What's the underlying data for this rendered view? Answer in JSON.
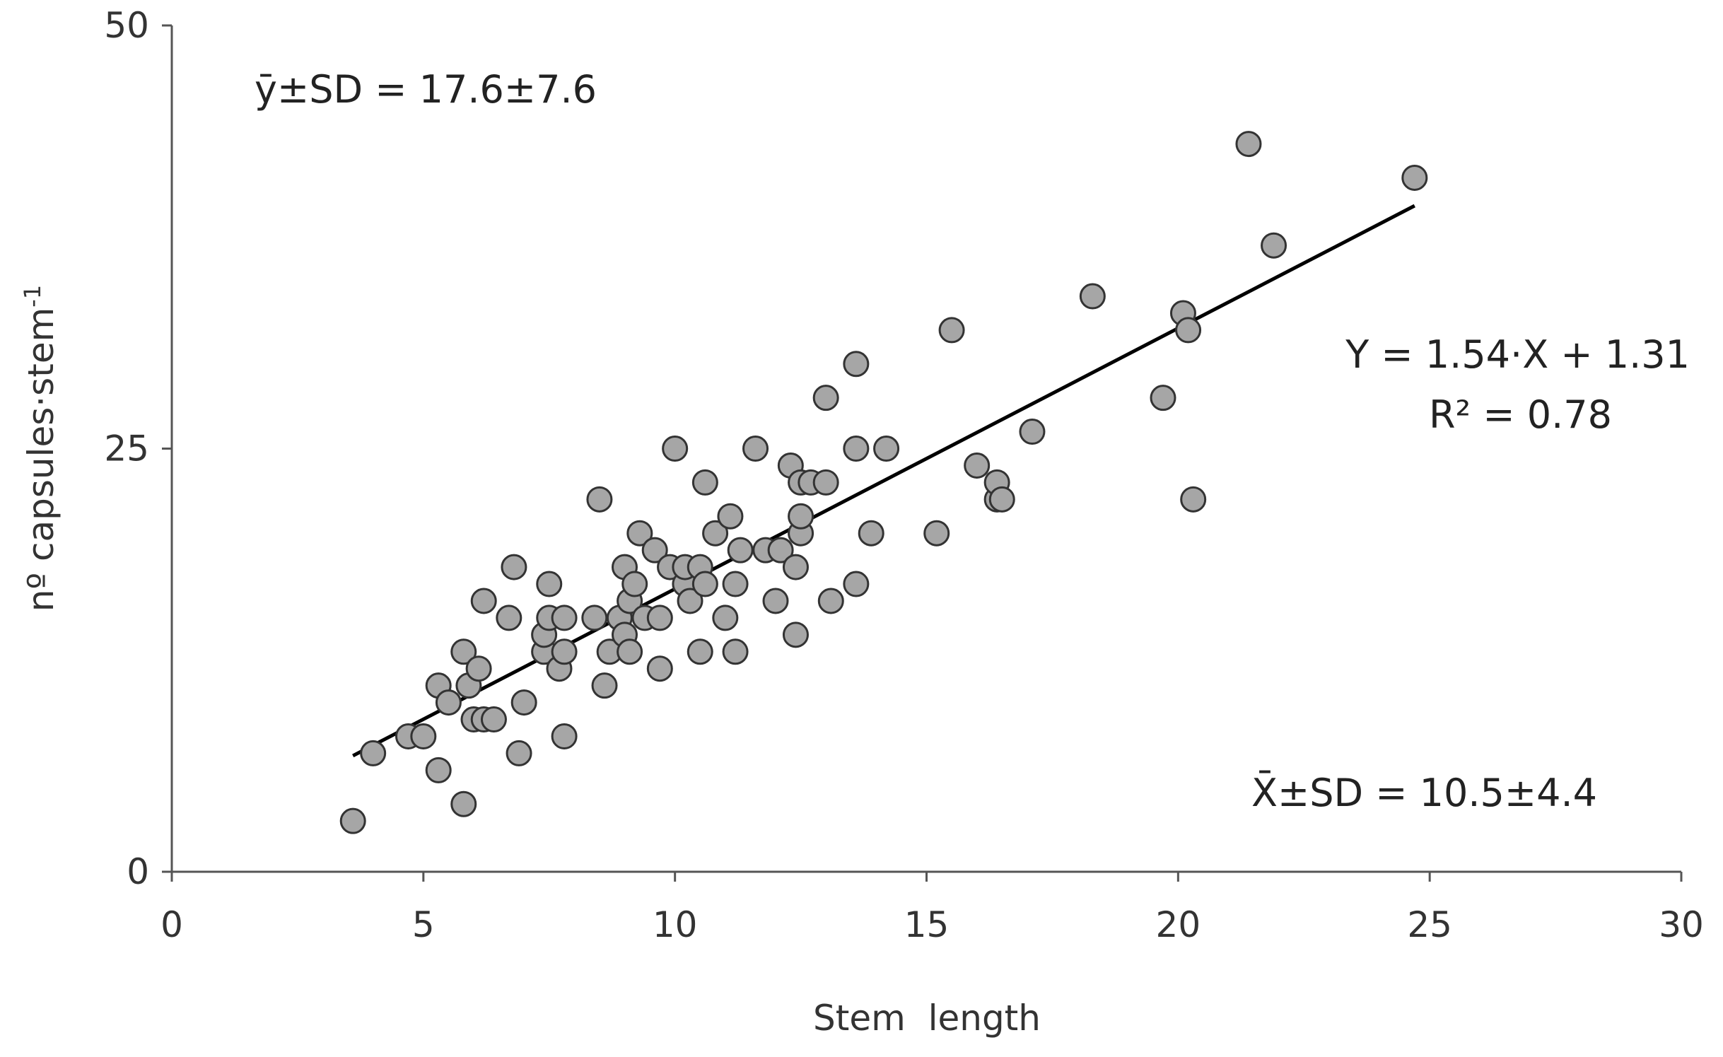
{
  "chart_data": {
    "type": "scatter",
    "title": "",
    "xlabel": "Stem  length",
    "ylabel": "nº capsules·stem-1",
    "ylabel_main": "nº capsules·stem",
    "ylabel_sup": "-1",
    "xlim": [
      0,
      30
    ],
    "ylim": [
      0,
      50
    ],
    "xticks": [
      0,
      5,
      10,
      15,
      20,
      25,
      30
    ],
    "yticks": [
      0,
      25,
      50
    ],
    "grid": false,
    "legend": "none",
    "colors": {
      "point_fill": "#a6a6a6",
      "point_stroke": "#333333",
      "line": "#000000",
      "axis": "#555555",
      "text": "#333333"
    },
    "annotations": {
      "ymean": "ȳ±SD = 17.6±7.6",
      "xmean": "X̄±SD = 10.5±4.4",
      "equation": "Y = 1.54·X + 1.31",
      "r2": "R² = 0.78"
    },
    "regression": {
      "slope": 1.54,
      "intercept": 1.31,
      "x_range": [
        3.6,
        24.7
      ]
    },
    "points": [
      [
        3.6,
        3
      ],
      [
        4.0,
        7
      ],
      [
        4.7,
        8
      ],
      [
        5.0,
        8
      ],
      [
        5.3,
        6
      ],
      [
        5.3,
        11
      ],
      [
        5.5,
        10
      ],
      [
        5.8,
        4
      ],
      [
        5.8,
        13
      ],
      [
        5.9,
        11
      ],
      [
        6.0,
        9
      ],
      [
        6.1,
        12
      ],
      [
        6.2,
        9
      ],
      [
        6.2,
        16
      ],
      [
        6.4,
        9
      ],
      [
        6.7,
        15
      ],
      [
        6.8,
        18
      ],
      [
        6.9,
        7
      ],
      [
        7.0,
        10
      ],
      [
        7.4,
        13
      ],
      [
        7.4,
        14
      ],
      [
        7.5,
        15
      ],
      [
        7.5,
        17
      ],
      [
        7.7,
        12
      ],
      [
        7.8,
        8
      ],
      [
        7.8,
        13
      ],
      [
        7.8,
        15
      ],
      [
        8.4,
        15
      ],
      [
        8.5,
        22
      ],
      [
        8.6,
        11
      ],
      [
        8.7,
        13
      ],
      [
        8.9,
        15
      ],
      [
        9.0,
        14
      ],
      [
        9.0,
        18
      ],
      [
        9.1,
        13
      ],
      [
        9.1,
        16
      ],
      [
        9.2,
        17
      ],
      [
        9.3,
        20
      ],
      [
        9.4,
        15
      ],
      [
        9.6,
        19
      ],
      [
        9.7,
        12
      ],
      [
        9.7,
        15
      ],
      [
        9.9,
        18
      ],
      [
        10.0,
        25
      ],
      [
        10.2,
        17
      ],
      [
        10.2,
        18
      ],
      [
        10.3,
        16
      ],
      [
        10.5,
        13
      ],
      [
        10.5,
        18
      ],
      [
        10.6,
        17
      ],
      [
        10.6,
        23
      ],
      [
        10.8,
        20
      ],
      [
        11.0,
        15
      ],
      [
        11.1,
        21
      ],
      [
        11.2,
        13
      ],
      [
        11.2,
        17
      ],
      [
        11.3,
        19
      ],
      [
        11.6,
        25
      ],
      [
        11.8,
        19
      ],
      [
        12.0,
        16
      ],
      [
        12.1,
        19
      ],
      [
        12.3,
        24
      ],
      [
        12.4,
        14
      ],
      [
        12.4,
        18
      ],
      [
        12.5,
        20
      ],
      [
        12.5,
        21
      ],
      [
        12.5,
        23
      ],
      [
        12.7,
        23
      ],
      [
        13.0,
        23
      ],
      [
        13.0,
        28
      ],
      [
        13.1,
        16
      ],
      [
        13.6,
        17
      ],
      [
        13.6,
        25
      ],
      [
        13.6,
        30
      ],
      [
        13.9,
        20
      ],
      [
        14.2,
        25
      ],
      [
        15.2,
        20
      ],
      [
        15.5,
        32
      ],
      [
        16.0,
        24
      ],
      [
        16.4,
        22
      ],
      [
        16.4,
        23
      ],
      [
        16.5,
        22
      ],
      [
        17.1,
        26
      ],
      [
        18.3,
        34
      ],
      [
        19.7,
        28
      ],
      [
        20.1,
        33
      ],
      [
        20.2,
        32
      ],
      [
        20.3,
        22
      ],
      [
        21.4,
        43
      ],
      [
        21.9,
        37
      ],
      [
        24.7,
        41
      ]
    ]
  }
}
